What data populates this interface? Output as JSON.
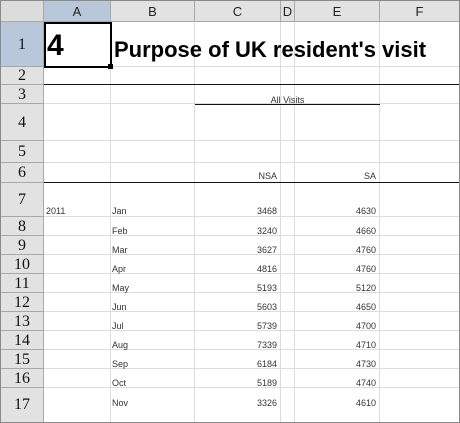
{
  "columns": [
    "A",
    "B",
    "C",
    "D",
    "E",
    "F"
  ],
  "rows": [
    "1",
    "2",
    "3",
    "4",
    "5",
    "6",
    "7",
    "8",
    "9",
    "10",
    "11",
    "12",
    "13",
    "14",
    "15",
    "16",
    "17"
  ],
  "sheet": {
    "table_number": "4",
    "title": "Purpose of UK resident's visit",
    "group_header": "All Visits",
    "col_nsa": "NSA",
    "col_sa": "SA",
    "year": "2011",
    "data": [
      {
        "month": "Jan",
        "nsa": "3468",
        "sa": "4630"
      },
      {
        "month": "Feb",
        "nsa": "3240",
        "sa": "4660"
      },
      {
        "month": "Mar",
        "nsa": "3627",
        "sa": "4760"
      },
      {
        "month": "Apr",
        "nsa": "4816",
        "sa": "4760"
      },
      {
        "month": "May",
        "nsa": "5193",
        "sa": "5120"
      },
      {
        "month": "Jun",
        "nsa": "5603",
        "sa": "4650"
      },
      {
        "month": "Jul",
        "nsa": "5739",
        "sa": "4700"
      },
      {
        "month": "Aug",
        "nsa": "7339",
        "sa": "4710"
      },
      {
        "month": "Sep",
        "nsa": "6184",
        "sa": "4730"
      },
      {
        "month": "Oct",
        "nsa": "5189",
        "sa": "4740"
      },
      {
        "month": "Nov",
        "nsa": "3326",
        "sa": "4610"
      }
    ]
  }
}
